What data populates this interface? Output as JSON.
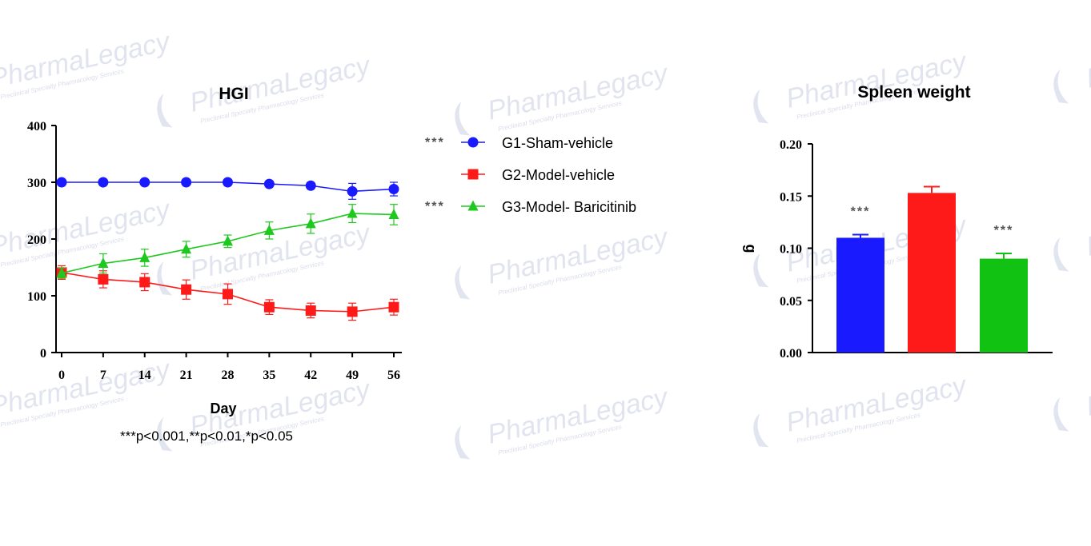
{
  "watermark": {
    "brand": "PharmaLegacy",
    "tagline": "Preclinical Specialty Pharmacology Services"
  },
  "chart_data": [
    {
      "type": "line",
      "title": "HGI",
      "xlabel": "Day",
      "ylabel": "",
      "x": [
        0,
        7,
        14,
        21,
        28,
        35,
        42,
        49,
        56
      ],
      "xticks": [
        "0",
        "7",
        "14",
        "21",
        "28",
        "35",
        "42",
        "49",
        "56"
      ],
      "yticks": [
        "0",
        "100",
        "200",
        "300",
        "400"
      ],
      "xlim": [
        -1,
        57
      ],
      "ylim": [
        0,
        400
      ],
      "grid": false,
      "legend": "right",
      "series": [
        {
          "name": "G1-Sham-vehicle",
          "color": "#1a1aff",
          "marker": "circle",
          "significance": "***",
          "values": [
            300,
            300,
            300,
            300,
            300,
            297,
            294,
            284,
            288
          ],
          "errors": [
            0,
            0,
            0,
            0,
            0,
            4,
            5,
            14,
            12
          ]
        },
        {
          "name": "G2-Model-vehicle",
          "color": "#ff1a1a",
          "marker": "square",
          "significance": "",
          "values": [
            141,
            129,
            124,
            111,
            103,
            80,
            74,
            72,
            80
          ],
          "errors": [
            12,
            15,
            15,
            17,
            18,
            13,
            13,
            15,
            14
          ]
        },
        {
          "name": "G3-Model- Baricitinib",
          "color": "#1ec81e",
          "marker": "triangle",
          "significance": "***",
          "values": [
            140,
            157,
            167,
            182,
            196,
            215,
            227,
            245,
            243
          ],
          "errors": [
            9,
            17,
            15,
            14,
            11,
            15,
            17,
            16,
            18
          ]
        }
      ],
      "footnote": "***p<0.001,**p<0.01,*p<0.05"
    },
    {
      "type": "bar",
      "title": "Spleen weight",
      "xlabel": "",
      "ylabel": "g",
      "yticks": [
        "0.00",
        "0.05",
        "0.10",
        "0.15",
        "0.20"
      ],
      "ylim": [
        0,
        0.2
      ],
      "grid": false,
      "bars": [
        {
          "value": 0.11,
          "error": 0.003,
          "color": "#1a1aff",
          "significance": "***"
        },
        {
          "value": 0.153,
          "error": 0.006,
          "color": "#ff1a1a",
          "significance": ""
        },
        {
          "value": 0.09,
          "error": 0.005,
          "color": "#12c212",
          "significance": "***"
        }
      ]
    }
  ]
}
